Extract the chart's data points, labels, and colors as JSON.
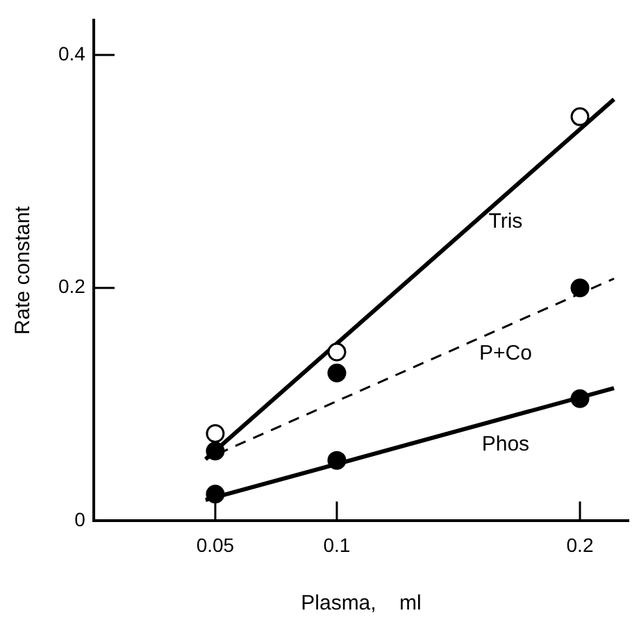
{
  "chart_data": {
    "type": "scatter",
    "xlabel": "Plasma,    ml",
    "ylabel": "Rate constant",
    "xlim": [
      0,
      0.22
    ],
    "ylim": [
      0,
      0.43
    ],
    "xticks": [
      0.05,
      0.1,
      0.2
    ],
    "yticks": [
      0,
      0.2,
      0.4
    ],
    "grid": false,
    "legend": false,
    "marker": "circle",
    "series": [
      {
        "color": "#ffffff",
        "x": [
          0.05,
          0.1,
          0.2
        ],
        "values": [
          0.075,
          0.145,
          0.347
        ]
      },
      {
        "color": "#000000",
        "x": [
          0.05,
          0.1,
          0.2
        ],
        "values": [
          0.06,
          0.127,
          0.2
        ]
      },
      {
        "color": "#000000",
        "x": [
          0.05,
          0.1,
          0.2
        ],
        "values": [
          0.023,
          0.052,
          0.105
        ]
      },
      {
        "type": "line",
        "name": "Tris",
        "color": "#000000",
        "marker": "none",
        "line_style": "solid",
        "x": [
          0.046,
          0.214
        ],
        "values": [
          0.053,
          0.362
        ]
      },
      {
        "type": "line",
        "name": "P+Co",
        "color": "#000000",
        "marker": "none",
        "line_style": "dashed",
        "x": [
          0.046,
          0.214
        ],
        "values": [
          0.053,
          0.208
        ]
      },
      {
        "type": "line",
        "name": "Phos",
        "color": "#000000",
        "marker": "none",
        "line_style": "solid",
        "x": [
          0.046,
          0.214
        ],
        "values": [
          0.018,
          0.114
        ]
      }
    ]
  }
}
